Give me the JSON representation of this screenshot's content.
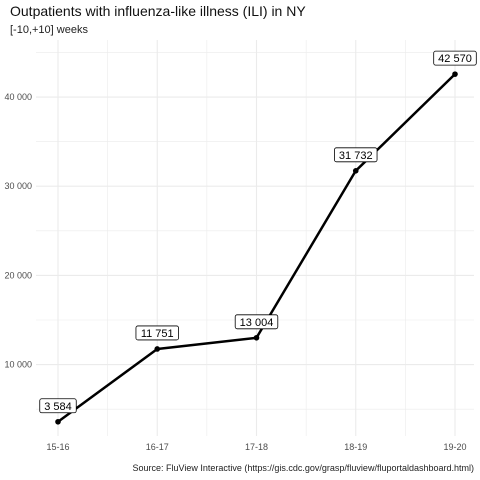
{
  "title": "Outpatients with influenza-like illness (ILI) in NY",
  "subtitle": "[-10,+10] weeks",
  "caption": "Source: FluView Interactive (https://gis.cdc.gov/grasp/fluview/fluportaldashboard.html)",
  "chart_data": {
    "type": "line",
    "title": "Outpatients with influenza-like illness (ILI) in NY",
    "subtitle": "[-10,+10] weeks",
    "categories": [
      "15-16",
      "16-17",
      "17-18",
      "18-19",
      "19-20"
    ],
    "values": [
      3584,
      11751,
      13004,
      31732,
      42570
    ],
    "data_labels": [
      "3 584",
      "11 751",
      "13 004",
      "31 732",
      "42 570"
    ],
    "y_ticks": [
      10000,
      20000,
      30000,
      40000
    ],
    "y_tick_labels": [
      "10 000",
      "20 000",
      "30 000",
      "40 000"
    ],
    "ylim": [
      1990,
      46400
    ],
    "xlabel": "",
    "ylabel": "",
    "grid": true,
    "legend": "none",
    "colors": {
      "line": "#000000",
      "grid": "#ebebeb",
      "label_box_fill": "#ffffff"
    }
  }
}
